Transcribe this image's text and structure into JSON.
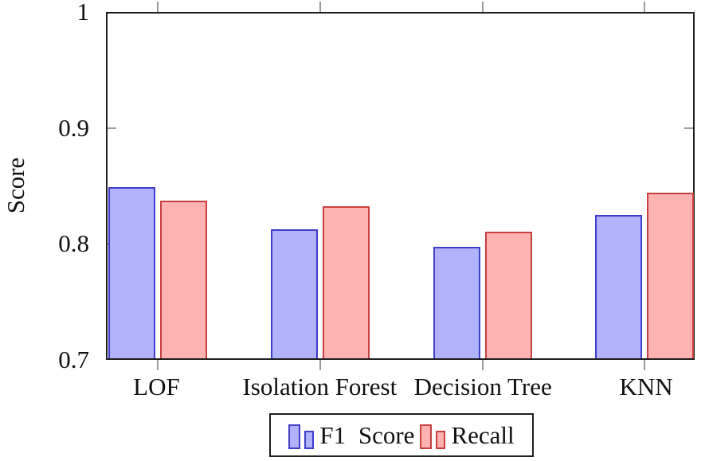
{
  "chart_data": {
    "type": "bar",
    "title": "",
    "xlabel": "",
    "ylabel": "Score",
    "categories": [
      "LOF",
      "Isolation Forest",
      "Decision Tree",
      "KNN"
    ],
    "series": [
      {
        "name": "F1 Score",
        "fill": "#b2b2fa",
        "stroke": "#3e3ec9",
        "values": [
          0.849,
          0.812,
          0.797,
          0.825
        ]
      },
      {
        "name": "Recall",
        "fill": "#ffb2b2",
        "stroke": "#c94040",
        "values": [
          0.837,
          0.832,
          0.81,
          0.844
        ]
      }
    ],
    "ylim": [
      0.7,
      1.0
    ],
    "yticks": [
      0.7,
      0.8,
      0.9,
      1.0
    ],
    "ytick_labels": [
      "0.7",
      "0.8",
      "0.9",
      "1"
    ],
    "grid": false,
    "legend_position": "below"
  },
  "colors": {
    "frame": "#1f1f1f",
    "tick": "#9a9a9a",
    "background": "#ffffff",
    "text": "#111111"
  }
}
